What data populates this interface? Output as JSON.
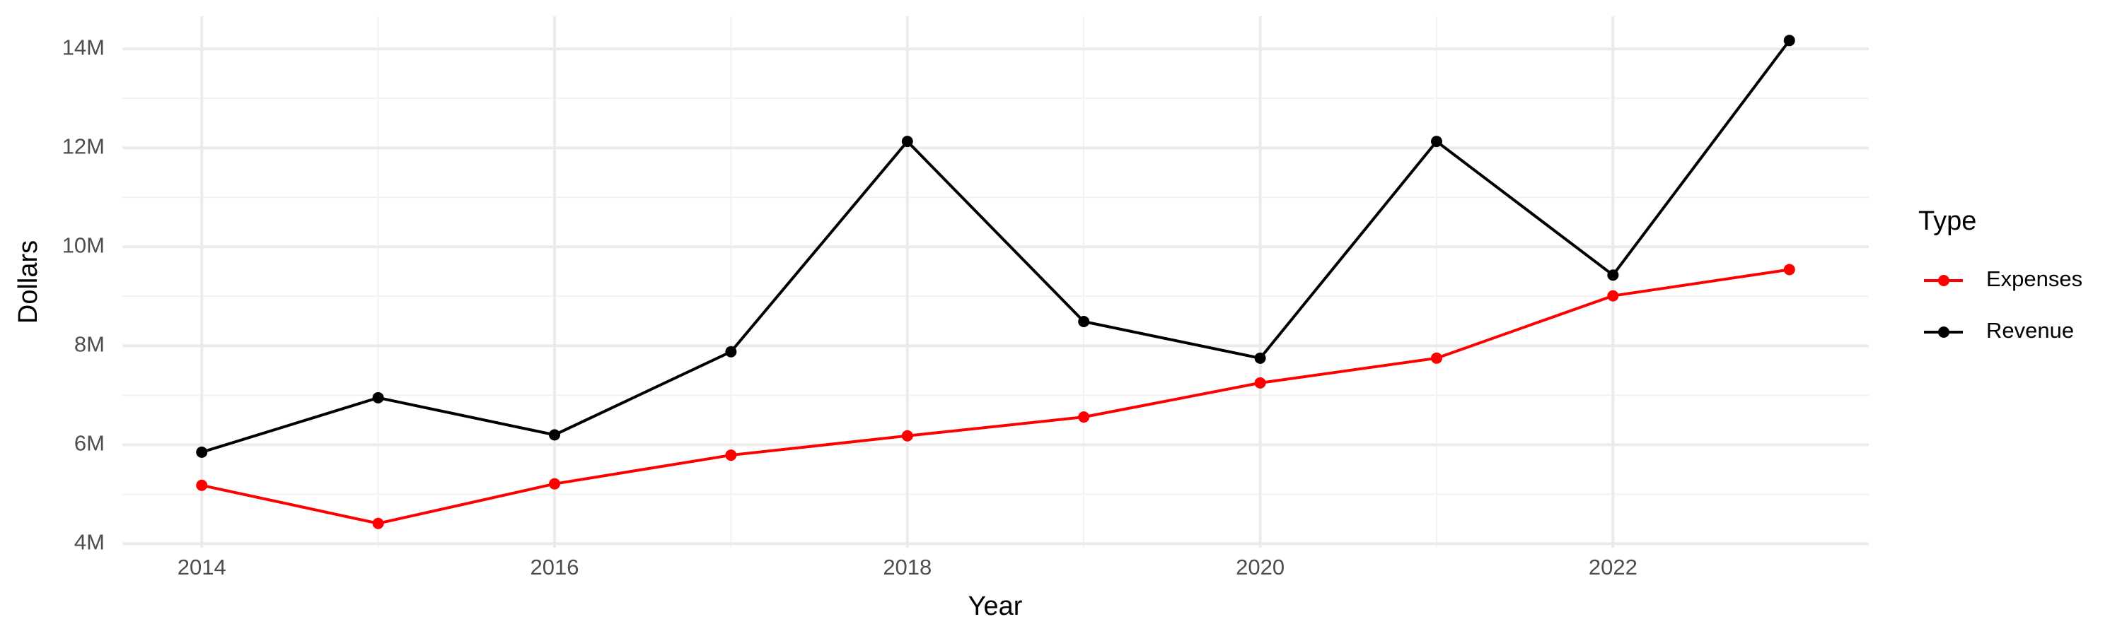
{
  "chart_data": {
    "type": "line",
    "x_label": "Year",
    "y_label": "Dollars",
    "legend_title": "Type",
    "x": [
      2014,
      2015,
      2016,
      2017,
      2018,
      2019,
      2020,
      2021,
      2022,
      2023
    ],
    "series": [
      {
        "name": "Expenses",
        "color": "#ff0000",
        "values": [
          5180000,
          4410000,
          5210000,
          5790000,
          6180000,
          6560000,
          7250000,
          7750000,
          9010000,
          9540000
        ]
      },
      {
        "name": "Revenue",
        "color": "#000000",
        "values": [
          5850000,
          6950000,
          6200000,
          7880000,
          12130000,
          8490000,
          7750000,
          12130000,
          9430000,
          14170000
        ]
      }
    ],
    "xlim": [
      2013.55,
      2023.45
    ],
    "xticks": [
      2014,
      2016,
      2018,
      2020,
      2022
    ],
    "ylim": [
      3920000,
      14660000
    ],
    "yticks": [
      {
        "value": 4000000,
        "label": "4M"
      },
      {
        "value": 6000000,
        "label": "6M"
      },
      {
        "value": 8000000,
        "label": "8M"
      },
      {
        "value": 10000000,
        "label": "10M"
      },
      {
        "value": 12000000,
        "label": "12M"
      },
      {
        "value": 14000000,
        "label": "14M"
      }
    ],
    "grid": true,
    "legend": "right"
  }
}
